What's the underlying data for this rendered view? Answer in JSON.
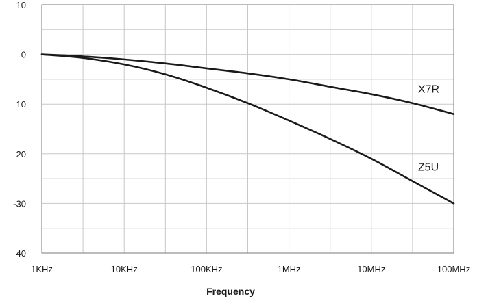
{
  "chart_data": {
    "type": "line",
    "title": "",
    "xlabel": "Frequency",
    "ylabel": "",
    "xscale": "log",
    "x_ticks": [
      {
        "value": 1000,
        "label": "1KHz"
      },
      {
        "value": 10000,
        "label": "10KHz"
      },
      {
        "value": 100000,
        "label": "100KHz"
      },
      {
        "value": 1000000,
        "label": "1MHz"
      },
      {
        "value": 10000000,
        "label": "10MHz"
      },
      {
        "value": 100000000,
        "label": "100MHz"
      }
    ],
    "xlim": [
      1000,
      100000000
    ],
    "ylim": [
      -40,
      10
    ],
    "y_ticks": [
      10,
      0,
      -10,
      -20,
      -30,
      -40
    ],
    "grid": true,
    "series": [
      {
        "name": "X7R",
        "color": "#1a1a1a",
        "x": [
          1000,
          3162,
          10000,
          31623,
          100000,
          316228,
          1000000,
          3162278,
          10000000,
          31622777,
          100000000
        ],
        "y": [
          0,
          -0.4,
          -1.0,
          -1.8,
          -2.8,
          -3.8,
          -5.0,
          -6.5,
          -8.0,
          -9.8,
          -12.0
        ]
      },
      {
        "name": "Z5U",
        "color": "#1a1a1a",
        "x": [
          1000,
          3162,
          10000,
          31623,
          100000,
          316228,
          1000000,
          3162278,
          10000000,
          31622777,
          100000000
        ],
        "y": [
          0,
          -0.7,
          -2.0,
          -4.0,
          -6.7,
          -9.8,
          -13.3,
          -17.0,
          -21.0,
          -25.5,
          -30.0
        ]
      }
    ]
  }
}
